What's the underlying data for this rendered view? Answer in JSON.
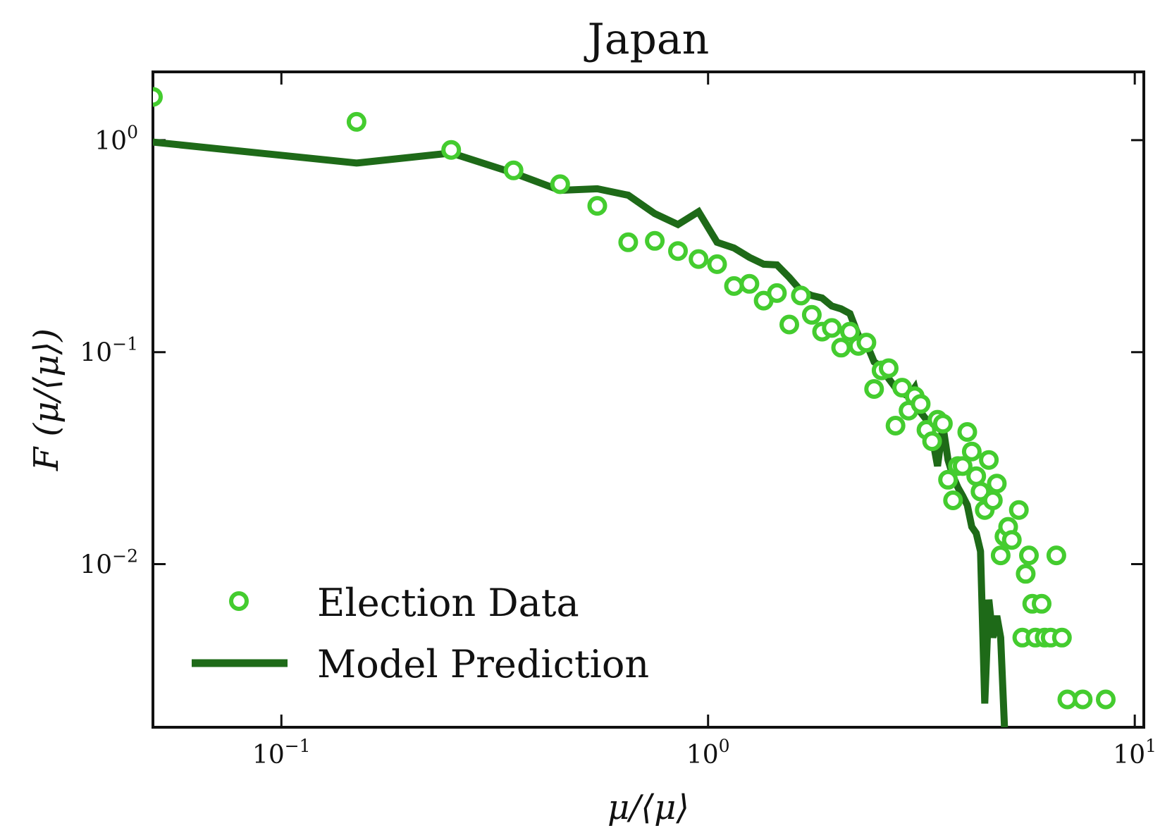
{
  "chart_data": {
    "type": "scatter",
    "title": "Japan",
    "xlabel": "μ/⟨μ⟩",
    "ylabel": "F (μ/⟨μ⟩)",
    "x_scale": "log",
    "y_scale": "log",
    "xlim": [
      0.05,
      10.5
    ],
    "ylim": [
      0.0017,
      2.1
    ],
    "grid": false,
    "legend_position": "lower-left",
    "x_ticks": [
      {
        "value": 0.1,
        "base": "10",
        "exp": "−1"
      },
      {
        "value": 1,
        "base": "10",
        "exp": "0"
      },
      {
        "value": 10,
        "base": "10",
        "exp": "1"
      }
    ],
    "y_ticks": [
      {
        "value": 1,
        "base": "10",
        "exp": "0"
      },
      {
        "value": 0.1,
        "base": "10",
        "exp": "−1"
      },
      {
        "value": 0.01,
        "base": "10",
        "exp": "−2"
      }
    ],
    "series": [
      {
        "name": "Election Data",
        "kind": "points",
        "color": "#44cc2f",
        "points": [
          [
            0.05,
            1.6
          ],
          [
            0.15,
            1.22
          ],
          [
            0.25,
            0.9
          ],
          [
            0.35,
            0.72
          ],
          [
            0.45,
            0.62
          ],
          [
            0.55,
            0.49
          ],
          [
            0.65,
            0.33
          ],
          [
            0.75,
            0.335
          ],
          [
            0.85,
            0.3
          ],
          [
            0.95,
            0.275
          ],
          [
            1.05,
            0.26
          ],
          [
            1.15,
            0.205
          ],
          [
            1.25,
            0.21
          ],
          [
            1.35,
            0.175
          ],
          [
            1.45,
            0.19
          ],
          [
            1.55,
            0.135
          ],
          [
            1.65,
            0.185
          ],
          [
            1.75,
            0.15
          ],
          [
            1.85,
            0.125
          ],
          [
            1.95,
            0.13
          ],
          [
            2.05,
            0.105
          ],
          [
            2.15,
            0.125
          ],
          [
            2.25,
            0.107
          ],
          [
            2.35,
            0.111
          ],
          [
            2.45,
            0.067
          ],
          [
            2.55,
            0.082
          ],
          [
            2.65,
            0.084
          ],
          [
            2.75,
            0.045
          ],
          [
            2.85,
            0.068
          ],
          [
            2.95,
            0.053
          ],
          [
            3.05,
            0.062
          ],
          [
            3.15,
            0.057
          ],
          [
            3.25,
            0.043
          ],
          [
            3.35,
            0.038
          ],
          [
            3.45,
            0.048
          ],
          [
            3.55,
            0.046
          ],
          [
            3.65,
            0.025
          ],
          [
            3.75,
            0.02
          ],
          [
            3.85,
            0.029
          ],
          [
            3.95,
            0.029
          ],
          [
            4.05,
            0.042
          ],
          [
            4.15,
            0.034
          ],
          [
            4.25,
            0.026
          ],
          [
            4.35,
            0.022
          ],
          [
            4.45,
            0.018
          ],
          [
            4.55,
            0.031
          ],
          [
            4.65,
            0.02
          ],
          [
            4.75,
            0.024
          ],
          [
            4.85,
            0.011
          ],
          [
            4.95,
            0.0135
          ],
          [
            5.05,
            0.015
          ],
          [
            5.15,
            0.013
          ],
          [
            5.35,
            0.018
          ],
          [
            5.45,
            0.0045
          ],
          [
            5.55,
            0.009
          ],
          [
            5.65,
            0.011
          ],
          [
            5.75,
            0.0065
          ],
          [
            5.85,
            0.0045
          ],
          [
            6.05,
            0.0065
          ],
          [
            6.15,
            0.0045
          ],
          [
            6.35,
            0.0045
          ],
          [
            6.55,
            0.011
          ],
          [
            6.75,
            0.0045
          ],
          [
            6.95,
            0.0023
          ],
          [
            7.55,
            0.0023
          ],
          [
            8.55,
            0.0023
          ]
        ]
      },
      {
        "name": "Model Prediction",
        "kind": "line",
        "color": "#1e6a18",
        "points": [
          [
            0.05,
            0.98
          ],
          [
            0.15,
            0.78
          ],
          [
            0.25,
            0.87
          ],
          [
            0.35,
            0.7
          ],
          [
            0.45,
            0.58
          ],
          [
            0.55,
            0.59
          ],
          [
            0.65,
            0.55
          ],
          [
            0.75,
            0.45
          ],
          [
            0.85,
            0.4
          ],
          [
            0.95,
            0.46
          ],
          [
            1.05,
            0.33
          ],
          [
            1.15,
            0.31
          ],
          [
            1.25,
            0.28
          ],
          [
            1.35,
            0.26
          ],
          [
            1.45,
            0.258
          ],
          [
            1.55,
            0.225
          ],
          [
            1.65,
            0.195
          ],
          [
            1.75,
            0.185
          ],
          [
            1.85,
            0.18
          ],
          [
            1.95,
            0.165
          ],
          [
            2.05,
            0.16
          ],
          [
            2.15,
            0.152
          ],
          [
            2.25,
            0.12
          ],
          [
            2.35,
            0.11
          ],
          [
            2.45,
            0.09
          ],
          [
            2.55,
            0.085
          ],
          [
            2.65,
            0.075
          ],
          [
            2.75,
            0.068
          ],
          [
            2.85,
            0.064
          ],
          [
            2.95,
            0.062
          ],
          [
            3.05,
            0.068
          ],
          [
            3.15,
            0.052
          ],
          [
            3.25,
            0.048
          ],
          [
            3.35,
            0.04
          ],
          [
            3.45,
            0.029
          ],
          [
            3.55,
            0.045
          ],
          [
            3.65,
            0.031
          ],
          [
            3.75,
            0.026
          ],
          [
            3.85,
            0.023
          ],
          [
            3.95,
            0.021
          ],
          [
            4.05,
            0.019
          ],
          [
            4.15,
            0.015
          ],
          [
            4.25,
            0.014
          ],
          [
            4.35,
            0.0115
          ],
          [
            4.45,
            0.0022
          ],
          [
            4.55,
            0.0068
          ],
          [
            4.65,
            0.0045
          ],
          [
            4.75,
            0.0057
          ],
          [
            4.85,
            0.0045
          ],
          [
            4.95,
            0.0017
          ]
        ]
      }
    ]
  }
}
